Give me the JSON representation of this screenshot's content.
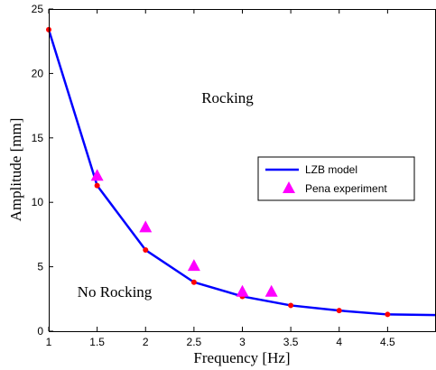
{
  "chart_data": {
    "type": "line",
    "title": "",
    "xlabel": "Frequency [Hz]",
    "ylabel": "Amplitude [mm]",
    "xlim": [
      1,
      5
    ],
    "ylim": [
      0,
      25
    ],
    "xticks": [
      "1",
      "1.5",
      "2",
      "2.5",
      "3",
      "3.5",
      "4",
      "4.5"
    ],
    "yticks": [
      "0",
      "5",
      "10",
      "15",
      "20",
      "25"
    ],
    "grid": false,
    "legend_position": "center-right",
    "annotations": [
      "Rocking",
      "No Rocking"
    ],
    "series": [
      {
        "name": "LZB model",
        "style": "line",
        "color": "#0000ff",
        "x": [
          1,
          1.5,
          2,
          2.5,
          3,
          3.5,
          4,
          4.5,
          5
        ],
        "y": [
          23.4,
          11.3,
          6.3,
          3.8,
          2.7,
          2.0,
          1.6,
          1.3,
          1.25
        ]
      },
      {
        "name": "",
        "style": "markers",
        "color": "#ff0000",
        "x": [
          1,
          1.5,
          2,
          2.5,
          3,
          3.5,
          4,
          4.5
        ],
        "y": [
          23.4,
          11.3,
          6.3,
          3.8,
          2.7,
          2.0,
          1.6,
          1.3
        ]
      },
      {
        "name": "Pena experiment",
        "style": "triangles",
        "color": "#ff00ff",
        "x": [
          1.5,
          2,
          2.5,
          3,
          3.3
        ],
        "y": [
          12.1,
          8.1,
          5.1,
          3.1,
          3.1
        ]
      }
    ]
  }
}
